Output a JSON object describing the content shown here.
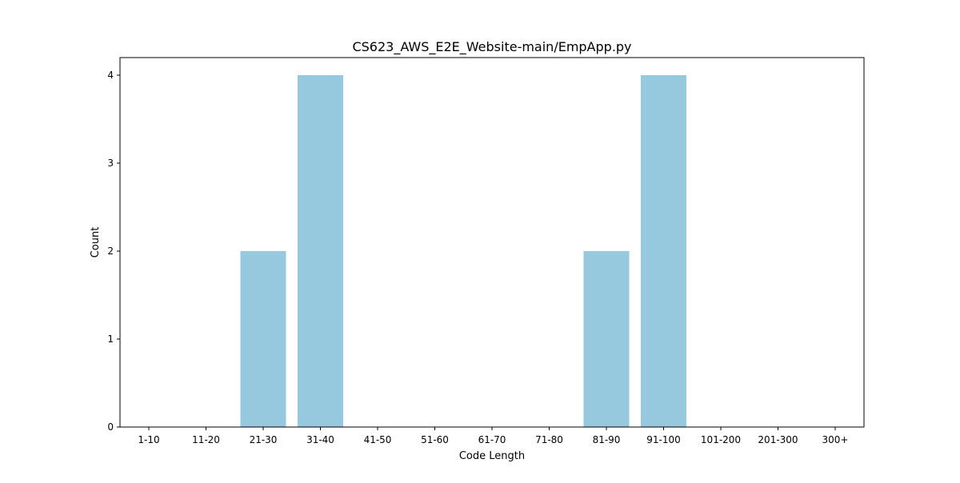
{
  "chart_data": {
    "type": "bar",
    "title": "CS623_AWS_E2E_Website-main/EmpApp.py",
    "xlabel": "Code Length",
    "ylabel": "Count",
    "categories": [
      "1-10",
      "11-20",
      "21-30",
      "31-40",
      "41-50",
      "51-60",
      "61-70",
      "71-80",
      "81-90",
      "91-100",
      "101-200",
      "201-300",
      "300+"
    ],
    "values": [
      0,
      0,
      2,
      4,
      0,
      0,
      0,
      0,
      2,
      4,
      0,
      0,
      0
    ],
    "yticks": [
      0,
      1,
      2,
      3,
      4
    ],
    "ylim": [
      0,
      4.2
    ],
    "grid": false,
    "bar_color": "#96c9de"
  }
}
